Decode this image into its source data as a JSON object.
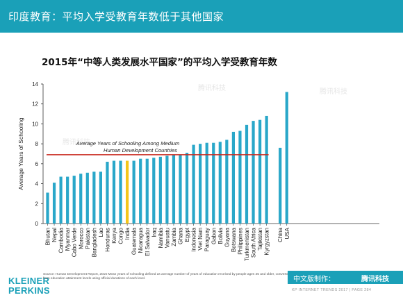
{
  "header": {
    "title": "印度教育：平均入学受教育年数低于其他国家"
  },
  "watermarks": [
    "腾讯科技",
    "腾讯科技",
    "腾讯科技"
  ],
  "chart_data": {
    "type": "bar",
    "title": "2015年“中等人类发展水平国家”的平均入学受教育年数",
    "ylabel": "Average Years of Schooling",
    "xlabel": "",
    "ylim": [
      0,
      14
    ],
    "yticks": [
      0,
      2,
      4,
      6,
      8,
      10,
      12,
      14
    ],
    "grid": false,
    "categories": [
      "Bhutan",
      "Nepal",
      "Cambodia",
      "Myanmar",
      "Cabo Verde",
      "Morocco",
      "Pakistan",
      "Bangladesh",
      "Lao",
      "Honduras",
      "Kenya",
      "Congo",
      "India",
      "Guatemala",
      "Nicaragua",
      "El Salvador",
      "Iraq",
      "Namibia",
      "Vanuatu",
      "Zambia",
      "Ghana",
      "Egypt",
      "Indonesia",
      "Viet Nam",
      "Paraguay",
      "Gabon",
      "Bolivia",
      "Guyana",
      "Botswana",
      "Philippines",
      "Turkmenistan",
      "South Africa",
      "Tajikistan",
      "Kyrgyzstan",
      "China",
      "USA"
    ],
    "values": [
      3.1,
      4.1,
      4.7,
      4.7,
      4.8,
      5.0,
      5.1,
      5.2,
      5.2,
      6.2,
      6.3,
      6.3,
      6.3,
      6.3,
      6.5,
      6.5,
      6.6,
      6.7,
      6.8,
      6.9,
      6.9,
      7.1,
      7.9,
      8.0,
      8.1,
      8.1,
      8.2,
      8.4,
      9.2,
      9.3,
      9.9,
      10.3,
      10.4,
      10.8,
      7.6,
      13.2
    ],
    "highlight_category": "India",
    "colors": {
      "bar": "#29a7c9",
      "highlight": "#f5c518",
      "reference_line": "#c8281e"
    },
    "reference_line": {
      "value": 6.9,
      "label_line1": "Average Years of Schooling Among Medium",
      "label_line2": "Human Development Countries"
    }
  },
  "footer": {
    "logo_line1": "KLEINER",
    "logo_line2": "PERKINS",
    "source": "Source: Human Development Report, 2016\nMean years of schooling defined as average number of years of education received by people ages 25 and older, converted from education attainment levels using official durations of each level.",
    "badge_text": "中文版制作：",
    "badge_brand": "腾讯科技",
    "trend_text": "KP INTERNET TRENDS 2017  |  PAGE 284"
  }
}
